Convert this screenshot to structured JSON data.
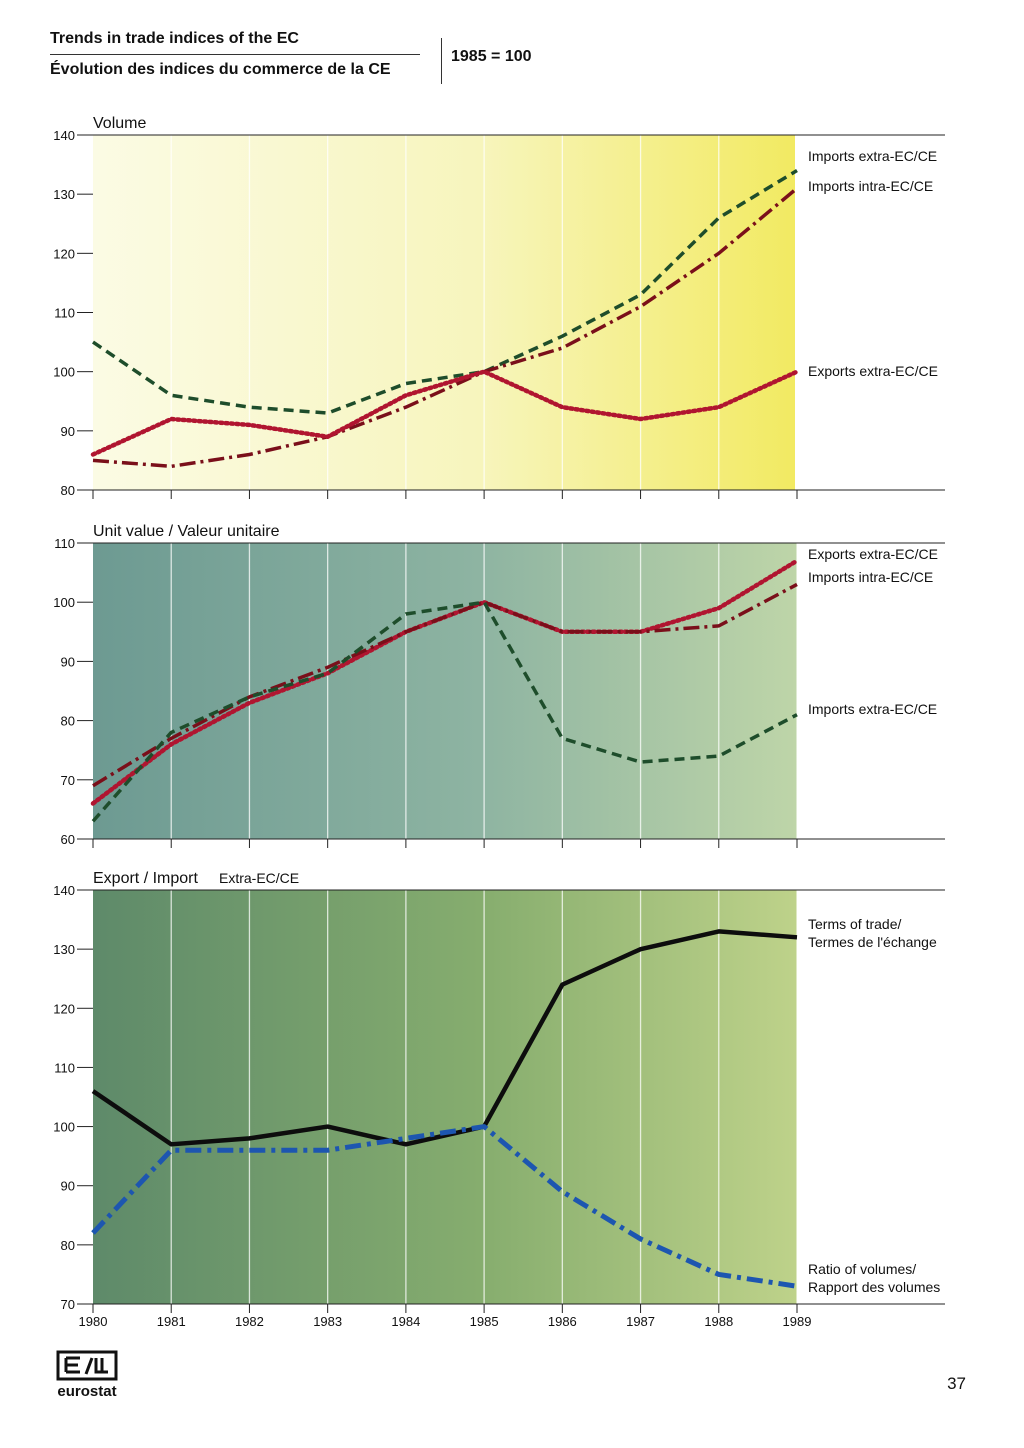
{
  "header": {
    "title_en": "Trends in trade indices of the EC",
    "title_fr": "Évolution des indices du commerce de la CE",
    "base": "1985 = 100"
  },
  "footer": {
    "logo_text": "eurostat",
    "page_number": "37"
  },
  "colors": {
    "imports_extra": "#1e4d2b",
    "imports_intra": "#7a0f1a",
    "exports_extra": "#b01530",
    "terms_of_trade": "#0d0d0d",
    "ratio_of_volumes": "#1d56b0"
  },
  "chart_data": [
    {
      "type": "line",
      "title": "Volume",
      "x": [
        1980,
        1981,
        1982,
        1983,
        1984,
        1985,
        1986,
        1987,
        1988,
        1989
      ],
      "ylim": [
        80,
        140
      ],
      "yticks": [
        80,
        90,
        100,
        110,
        120,
        130,
        140
      ],
      "series": [
        {
          "name": "Imports extra-EC/CE",
          "values": [
            105,
            96,
            94,
            93,
            98,
            100,
            106,
            113,
            126,
            134
          ]
        },
        {
          "name": "Imports intra-EC/CE",
          "values": [
            85,
            84,
            86,
            89,
            94,
            100,
            104,
            111,
            120,
            131
          ]
        },
        {
          "name": "Exports extra-EC/CE",
          "values": [
            86,
            92,
            91,
            89,
            96,
            100,
            94,
            92,
            94,
            100
          ]
        }
      ]
    },
    {
      "type": "line",
      "title": "Unit value / Valeur unitaire",
      "x": [
        1980,
        1981,
        1982,
        1983,
        1984,
        1985,
        1986,
        1987,
        1988,
        1989
      ],
      "ylim": [
        60,
        110
      ],
      "yticks": [
        60,
        70,
        80,
        90,
        100,
        110
      ],
      "series": [
        {
          "name": "Exports extra-EC/CE",
          "values": [
            66,
            76,
            83,
            88,
            95,
            100,
            95,
            95,
            99,
            107
          ]
        },
        {
          "name": "Imports intra-EC/CE",
          "values": [
            69,
            77,
            84,
            89,
            95,
            100,
            95,
            95,
            96,
            103
          ]
        },
        {
          "name": "Imports extra-EC/CE",
          "values": [
            63,
            78,
            84,
            88,
            98,
            100,
            77,
            73,
            74,
            81
          ]
        }
      ]
    },
    {
      "type": "line",
      "title": "Export / Import",
      "subtitle": "Extra-EC/CE",
      "x": [
        1980,
        1981,
        1982,
        1983,
        1984,
        1985,
        1986,
        1987,
        1988,
        1989
      ],
      "ylim": [
        70,
        140
      ],
      "yticks": [
        70,
        80,
        90,
        100,
        110,
        120,
        130,
        140
      ],
      "series": [
        {
          "name": "Terms of trade/\nTermes de l'échange",
          "values": [
            106,
            97,
            98,
            100,
            97,
            100,
            124,
            130,
            133,
            132
          ]
        },
        {
          "name": "Ratio of volumes/\nRapport des volumes",
          "values": [
            82,
            96,
            96,
            96,
            98,
            100,
            89,
            81,
            75,
            73
          ]
        }
      ]
    }
  ]
}
